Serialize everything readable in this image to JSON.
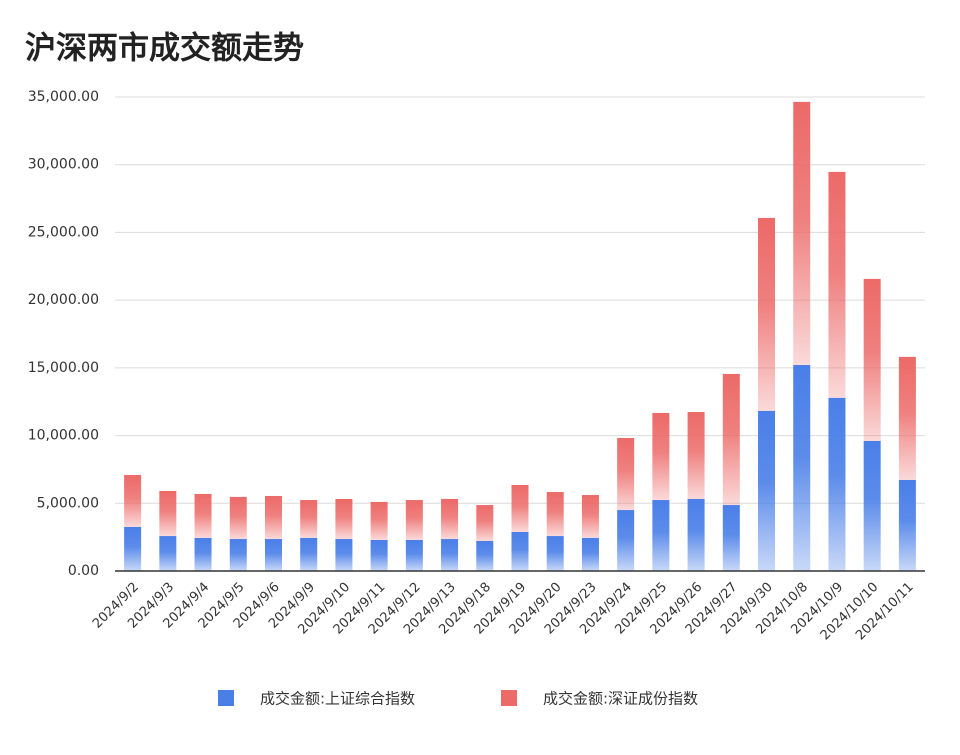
{
  "chart_data": {
    "type": "stacked-bar",
    "title": "沪深两市成交额走势",
    "categories": [
      "2024/9/2",
      "2024/9/3",
      "2024/9/4",
      "2024/9/5",
      "2024/9/6",
      "2024/9/9",
      "2024/9/10",
      "2024/9/11",
      "2024/9/12",
      "2024/9/13",
      "2024/9/18",
      "2024/9/19",
      "2024/9/20",
      "2024/9/23",
      "2024/9/24",
      "2024/9/25",
      "2024/9/26",
      "2024/9/27",
      "2024/9/30",
      "2024/10/8",
      "2024/10/9",
      "2024/10/10",
      "2024/10/11"
    ],
    "series": [
      {
        "name": "成交金额:上证综合指数",
        "color": "#4a7fe8",
        "values": [
          3250,
          2580,
          2440,
          2360,
          2360,
          2440,
          2360,
          2290,
          2290,
          2360,
          2220,
          2880,
          2580,
          2440,
          4500,
          5240,
          5320,
          4870,
          11820,
          15210,
          12780,
          9600,
          6720
        ]
      },
      {
        "name": "成交金额:深证成份指数",
        "color": "#ec6a68",
        "values": [
          3840,
          3330,
          3250,
          3110,
          3180,
          2800,
          2960,
          2810,
          2950,
          2960,
          2650,
          3470,
          3250,
          3170,
          5320,
          6430,
          6420,
          9680,
          14250,
          19430,
          16690,
          11970,
          9090
        ]
      }
    ],
    "ylim": [
      0,
      35000
    ],
    "yticks": [
      {
        "value": 0,
        "label": "0.00"
      },
      {
        "value": 5000,
        "label": "5,000.00"
      },
      {
        "value": 10000,
        "label": "10,000.00"
      },
      {
        "value": 15000,
        "label": "15,000.00"
      },
      {
        "value": 20000,
        "label": "20,000.00"
      },
      {
        "value": 25000,
        "label": "25,000.00"
      },
      {
        "value": 30000,
        "label": "30,000.00"
      },
      {
        "value": 35000,
        "label": "35,000.00"
      }
    ],
    "grid": true
  }
}
